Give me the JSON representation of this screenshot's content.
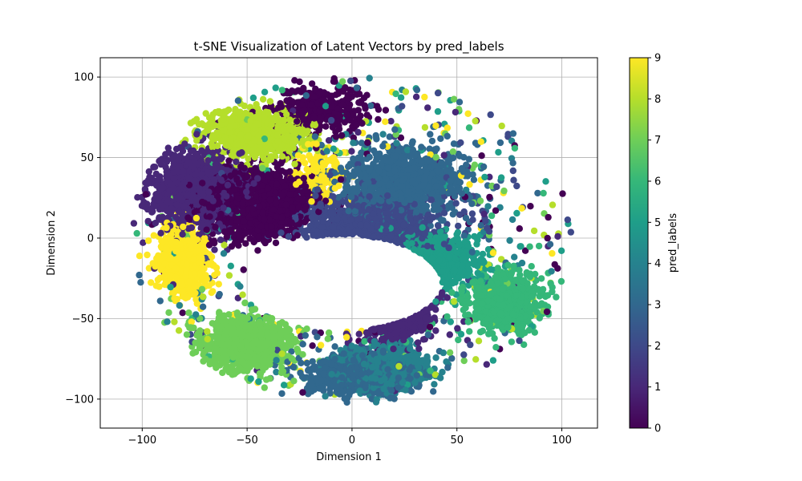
{
  "chart_data": {
    "type": "scatter",
    "title": "t-SNE Visualization of Latent Vectors by pred_labels",
    "xlabel": "Dimension 1",
    "ylabel": "Dimension 2",
    "xlim": [
      -120,
      117
    ],
    "ylim": [
      -118,
      112
    ],
    "xticks": [
      -100,
      -50,
      0,
      50,
      100
    ],
    "yticks": [
      -100,
      -50,
      0,
      50,
      100
    ],
    "grid": true,
    "colorbar": {
      "label": "pred_labels",
      "min": 0,
      "max": 9,
      "ticks": [
        0,
        1,
        2,
        3,
        4,
        5,
        6,
        7,
        8,
        9
      ],
      "colormap": "viridis",
      "colors": [
        "#440154",
        "#482878",
        "#3e4989",
        "#31688e",
        "#26828e",
        "#1f9e89",
        "#35b779",
        "#6ece58",
        "#b5de2b",
        "#fde725"
      ]
    },
    "clusters": [
      {
        "label": 0,
        "center": [
          -45,
          22
        ],
        "spread": [
          22,
          18
        ],
        "count": 1400
      },
      {
        "label": 0,
        "center": [
          -15,
          80
        ],
        "spread": [
          18,
          12
        ],
        "count": 350
      },
      {
        "label": 1,
        "center": [
          -75,
          30
        ],
        "spread": [
          18,
          20
        ],
        "count": 1100
      },
      {
        "label": 1,
        "center": [
          18,
          -40
        ],
        "spread": [
          14,
          14
        ],
        "count": 500
      },
      {
        "label": 2,
        "center": [
          10,
          5
        ],
        "spread": [
          28,
          18
        ],
        "count": 800
      },
      {
        "label": 3,
        "center": [
          25,
          35
        ],
        "spread": [
          25,
          18
        ],
        "count": 900
      },
      {
        "label": 3,
        "center": [
          5,
          -85
        ],
        "spread": [
          22,
          10
        ],
        "count": 700
      },
      {
        "label": 4,
        "center": [
          15,
          -80
        ],
        "spread": [
          18,
          12
        ],
        "count": 600
      },
      {
        "label": 5,
        "center": [
          35,
          -15
        ],
        "spread": [
          18,
          12
        ],
        "count": 600
      },
      {
        "label": 6,
        "center": [
          72,
          -40
        ],
        "spread": [
          14,
          14
        ],
        "count": 800
      },
      {
        "label": 7,
        "center": [
          -50,
          -65
        ],
        "spread": [
          18,
          15
        ],
        "count": 900
      },
      {
        "label": 8,
        "center": [
          -45,
          65
        ],
        "spread": [
          20,
          12
        ],
        "count": 900
      },
      {
        "label": 9,
        "center": [
          -80,
          -15
        ],
        "spread": [
          10,
          16
        ],
        "count": 700
      },
      {
        "label": 9,
        "center": [
          -15,
          40
        ],
        "spread": [
          10,
          10
        ],
        "count": 120
      }
    ]
  }
}
